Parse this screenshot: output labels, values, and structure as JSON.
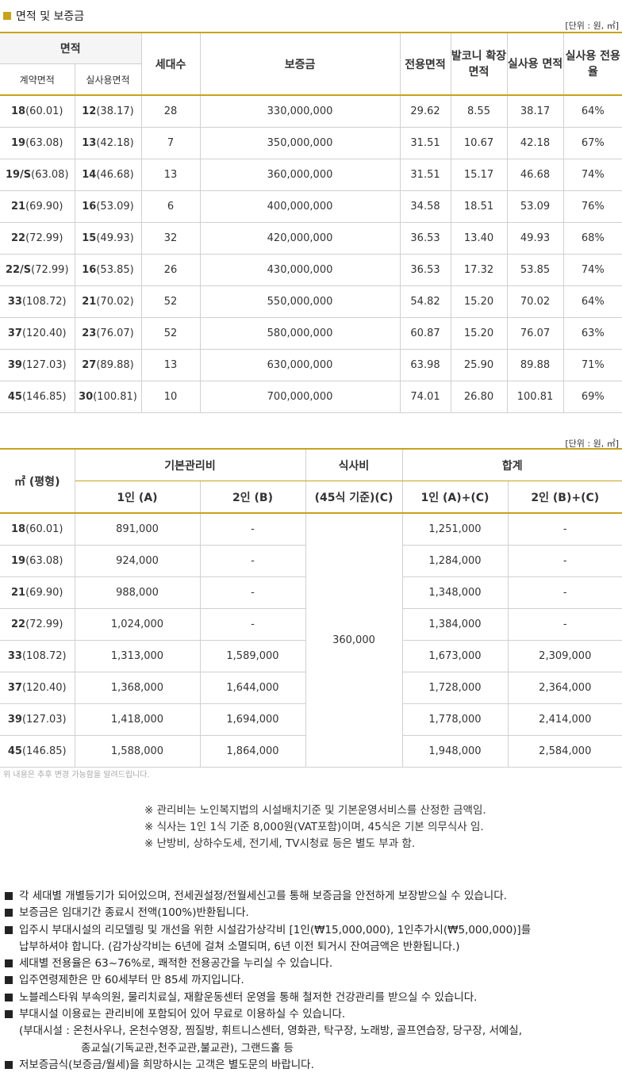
{
  "title": "면적 및 보증금",
  "unit_label": "[단위 : 원, ㎡]",
  "table1": {
    "headers": {
      "area": "면적",
      "contract_area": "계약면적",
      "actual_area": "실사용면적",
      "households": "세대수",
      "deposit": "보증금",
      "exclusive": "전용면적",
      "balcony": "발코니 확장면적",
      "actual_use": "실사용 면적",
      "ratio": "실사용 전용율"
    },
    "rows": [
      {
        "c_b": "18",
        "c_n": "(60.01)",
        "a_b": "12",
        "a_n": "(38.17)",
        "hh": "28",
        "dep": "330,000,000",
        "ex": "29.62",
        "bal": "8.55",
        "act": "38.17",
        "ratio": "64%"
      },
      {
        "c_b": "19",
        "c_n": "(63.08)",
        "a_b": "13",
        "a_n": "(42.18)",
        "hh": "7",
        "dep": "350,000,000",
        "ex": "31.51",
        "bal": "10.67",
        "act": "42.18",
        "ratio": "67%"
      },
      {
        "c_b": "19/S",
        "c_n": "(63.08)",
        "a_b": "14",
        "a_n": "(46.68)",
        "hh": "13",
        "dep": "360,000,000",
        "ex": "31.51",
        "bal": "15.17",
        "act": "46.68",
        "ratio": "74%"
      },
      {
        "c_b": "21",
        "c_n": "(69.90)",
        "a_b": "16",
        "a_n": "(53.09)",
        "hh": "6",
        "dep": "400,000,000",
        "ex": "34.58",
        "bal": "18.51",
        "act": "53.09",
        "ratio": "76%"
      },
      {
        "c_b": "22",
        "c_n": "(72.99)",
        "a_b": "15",
        "a_n": "(49.93)",
        "hh": "32",
        "dep": "420,000,000",
        "ex": "36.53",
        "bal": "13.40",
        "act": "49.93",
        "ratio": "68%"
      },
      {
        "c_b": "22/S",
        "c_n": "(72.99)",
        "a_b": "16",
        "a_n": "(53.85)",
        "hh": "26",
        "dep": "430,000,000",
        "ex": "36.53",
        "bal": "17.32",
        "act": "53.85",
        "ratio": "74%"
      },
      {
        "c_b": "33",
        "c_n": "(108.72)",
        "a_b": "21",
        "a_n": "(70.02)",
        "hh": "52",
        "dep": "550,000,000",
        "ex": "54.82",
        "bal": "15.20",
        "act": "70.02",
        "ratio": "64%"
      },
      {
        "c_b": "37",
        "c_n": "(120.40)",
        "a_b": "23",
        "a_n": "(76.07)",
        "hh": "52",
        "dep": "580,000,000",
        "ex": "60.87",
        "bal": "15.20",
        "act": "76.07",
        "ratio": "63%"
      },
      {
        "c_b": "39",
        "c_n": "(127.03)",
        "a_b": "27",
        "a_n": "(89.88)",
        "hh": "13",
        "dep": "630,000,000",
        "ex": "63.98",
        "bal": "25.90",
        "act": "89.88",
        "ratio": "71%"
      },
      {
        "c_b": "45",
        "c_n": "(146.85)",
        "a_b": "30",
        "a_n": "(100.81)",
        "hh": "10",
        "dep": "700,000,000",
        "ex": "74.01",
        "bal": "26.80",
        "act": "100.81",
        "ratio": "69%"
      }
    ]
  },
  "table2": {
    "unit_label": "[단위 : 원, ㎡]",
    "headers": {
      "size": "㎡ (평형)",
      "basic_fee": "기본관리비",
      "one_person": "1인 (A)",
      "two_person": "2인 (B)",
      "meal": "식사비",
      "meal_basis": "(45식 기준)(C)",
      "total": "합계",
      "total_one": "1인 (A)+(C)",
      "total_two": "2인 (B)+(C)"
    },
    "meal_value": "360,000",
    "rows": [
      {
        "s_b": "18",
        "s_n": "(60.01)",
        "a": "891,000",
        "b": "-",
        "ta": "1,251,000",
        "tb": "-"
      },
      {
        "s_b": "19",
        "s_n": "(63.08)",
        "a": "924,000",
        "b": "-",
        "ta": "1,284,000",
        "tb": "-"
      },
      {
        "s_b": "21",
        "s_n": "(69.90)",
        "a": "988,000",
        "b": "-",
        "ta": "1,348,000",
        "tb": "-"
      },
      {
        "s_b": "22",
        "s_n": "(72.99)",
        "a": "1,024,000",
        "b": "-",
        "ta": "1,384,000",
        "tb": "-"
      },
      {
        "s_b": "33",
        "s_n": "(108.72)",
        "a": "1,313,000",
        "b": "1,589,000",
        "ta": "1,673,000",
        "tb": "2,309,000"
      },
      {
        "s_b": "37",
        "s_n": "(120.40)",
        "a": "1,368,000",
        "b": "1,644,000",
        "ta": "1,728,000",
        "tb": "2,364,000"
      },
      {
        "s_b": "39",
        "s_n": "(127.03)",
        "a": "1,418,000",
        "b": "1,694,000",
        "ta": "1,778,000",
        "tb": "2,414,000"
      },
      {
        "s_b": "45",
        "s_n": "(146.85)",
        "a": "1,588,000",
        "b": "1,864,000",
        "ta": "1,948,000",
        "tb": "2,584,000"
      }
    ]
  },
  "small_note": "위 내용은 추후 변경 가능함을 알려드립니다.",
  "mid_notes": [
    "※ 관리비는 노인복지법의 시설배치기준 및 기본운영서비스를 산정한 금액임.",
    "※ 식사는 1인 1식 기준 8,000원(VAT포함)이며, 45식은 기본 의무식사 임.",
    "※ 난방비, 상하수도세, 전기세, TV시청료 등은 별도 부과 함."
  ],
  "bullets": {
    "b1": "각 세대별 개별등기가 되어있으며, 전세권설정/전월세신고를 통해 보증금을 안전하게 보장받으실 수 있습니다.",
    "b2": "보증금은 임대기간 종료시 전액(100%)반환됩니다.",
    "b3": "입주시 부대시설의 리모델링 및 개선을 위한 시설감가상각비 [1인(₩15,000,000), 1인추가시(₩5,000,000)]를",
    "b3_cont": "납부하셔야 합니다. (감가상각비는 6년에 걸쳐 소멸되며, 6년 이전 퇴거시 잔여금액은 반환됩니다.)",
    "b4": "세대별 전용율은 63~76%로, 쾌적한 전용공간을 누리실 수 있습니다.",
    "b5": "입주연령제한은 만 60세부터 만 85세 까지입니다.",
    "b6": "노블레스타워 부속의원, 물리치료실, 재활운동센터 운영을 통해 철저한 건강관리를 받으실 수 있습니다.",
    "b7": "부대시설 이용료는 관리비에 포함되어 있어 무료로 이용하실 수 있습니다.",
    "b7_cont1": "(부대시설 : 온천사우나, 온천수영장, 찜질방, 휘트니스센터, 영화관, 탁구장, 노래방, 골프연습장, 당구장, 서예실,",
    "b7_cont2": "종교실(기독교관,천주교관,불교관), 그랜드홀 등",
    "b8": "저보증금식(보증금/월세)을 희망하시는 고객은 별도문의 바랍니다."
  }
}
